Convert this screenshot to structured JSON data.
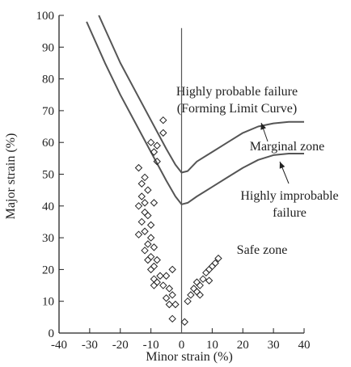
{
  "chart_data": {
    "type": "scatter",
    "title": "",
    "xlabel": "Minor strain (%)",
    "ylabel": "Major strain (%)",
    "xlim": [
      -40,
      40
    ],
    "ylim": [
      0,
      100
    ],
    "xticks": [
      -40,
      -30,
      -20,
      -10,
      0,
      10,
      20,
      30,
      40
    ],
    "yticks": [
      0,
      10,
      20,
      30,
      40,
      50,
      60,
      70,
      80,
      90,
      100
    ],
    "xtick_labels": [
      "-40",
      "-30",
      "-20",
      "-10",
      "0",
      "10",
      "20",
      "30",
      "40"
    ],
    "ytick_labels": [
      "0",
      "10",
      "20",
      "30",
      "40",
      "50",
      "60",
      "70",
      "80",
      "90",
      "100"
    ],
    "grid": false,
    "vertical_reference_x": 0,
    "marker": "diamond",
    "curves": [
      {
        "x": [
          -27,
          -20,
          -15,
          -10,
          -5,
          -2,
          0,
          2,
          5,
          10,
          15,
          20,
          25,
          30,
          35,
          40
        ],
        "y": [
          100,
          85,
          76,
          67,
          58,
          53,
          50.5,
          51,
          54,
          57,
          60,
          63,
          65,
          66,
          66.5,
          66.5
        ]
      },
      {
        "x": [
          -31,
          -25,
          -20,
          -15,
          -10,
          -5,
          -2,
          0,
          2,
          5,
          10,
          15,
          20,
          25,
          30,
          35,
          40
        ],
        "y": [
          98,
          85,
          75,
          66,
          57,
          48,
          43,
          40.5,
          41,
          43,
          46,
          49,
          52,
          54.5,
          56,
          56.5,
          56.5
        ]
      }
    ],
    "scatter_points": [
      {
        "x": -6,
        "y": 67
      },
      {
        "x": -6,
        "y": 63
      },
      {
        "x": -10,
        "y": 60
      },
      {
        "x": -8,
        "y": 59
      },
      {
        "x": -9,
        "y": 57
      },
      {
        "x": -8,
        "y": 54
      },
      {
        "x": -14,
        "y": 52
      },
      {
        "x": -12,
        "y": 49
      },
      {
        "x": -13,
        "y": 47
      },
      {
        "x": -11,
        "y": 45
      },
      {
        "x": -13,
        "y": 43
      },
      {
        "x": -12,
        "y": 41
      },
      {
        "x": -9,
        "y": 41
      },
      {
        "x": -14,
        "y": 40
      },
      {
        "x": -12,
        "y": 38
      },
      {
        "x": -11,
        "y": 37
      },
      {
        "x": -13,
        "y": 35
      },
      {
        "x": -10,
        "y": 34
      },
      {
        "x": -12,
        "y": 32
      },
      {
        "x": -14,
        "y": 31
      },
      {
        "x": -10,
        "y": 30
      },
      {
        "x": -11,
        "y": 28
      },
      {
        "x": -9,
        "y": 27
      },
      {
        "x": -12,
        "y": 26
      },
      {
        "x": -10,
        "y": 24
      },
      {
        "x": -11,
        "y": 23
      },
      {
        "x": -8,
        "y": 23
      },
      {
        "x": -9,
        "y": 21
      },
      {
        "x": -10,
        "y": 20
      },
      {
        "x": -7,
        "y": 18
      },
      {
        "x": -9,
        "y": 17
      },
      {
        "x": -8,
        "y": 16
      },
      {
        "x": -9,
        "y": 15
      },
      {
        "x": -6,
        "y": 15
      },
      {
        "x": -3,
        "y": 20
      },
      {
        "x": -5,
        "y": 18
      },
      {
        "x": -4,
        "y": 14
      },
      {
        "x": -3,
        "y": 12
      },
      {
        "x": -5,
        "y": 11
      },
      {
        "x": -4,
        "y": 9
      },
      {
        "x": -2,
        "y": 9
      },
      {
        "x": -3,
        "y": 4.5
      },
      {
        "x": 1,
        "y": 3.5
      },
      {
        "x": 2,
        "y": 10
      },
      {
        "x": 3,
        "y": 12
      },
      {
        "x": 4,
        "y": 14
      },
      {
        "x": 5,
        "y": 13
      },
      {
        "x": 6,
        "y": 12
      },
      {
        "x": 5,
        "y": 16
      },
      {
        "x": 7,
        "y": 17
      },
      {
        "x": 8,
        "y": 19
      },
      {
        "x": 9,
        "y": 20
      },
      {
        "x": 10,
        "y": 21
      },
      {
        "x": 11,
        "y": 22
      },
      {
        "x": 12,
        "y": 23.5
      },
      {
        "x": 9,
        "y": 16.5
      },
      {
        "x": 6,
        "y": 15
      }
    ],
    "annotations": [
      {
        "lines": [
          "Highly probable failure",
          "(Forming Limit Curve)"
        ]
      },
      {
        "lines": [
          "Marginal zone"
        ]
      },
      {
        "lines": [
          "Highly improbable",
          "failure"
        ]
      },
      {
        "lines": [
          "Safe zone"
        ]
      }
    ]
  },
  "colors": {
    "curve": "#555555",
    "axis": "#222222",
    "marker": "#222222"
  }
}
